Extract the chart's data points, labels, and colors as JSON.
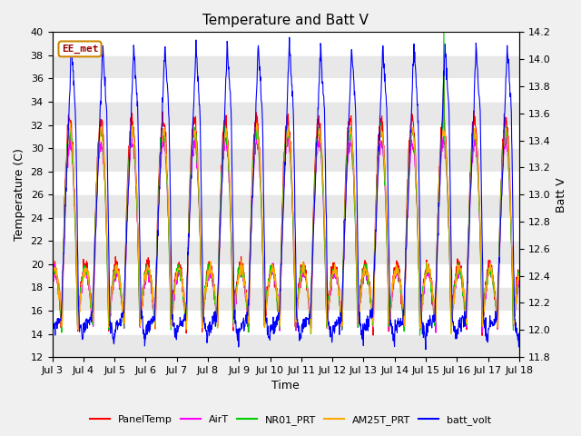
{
  "title": "Temperature and Batt V",
  "xlabel": "Time",
  "ylabel_left": "Temperature (C)",
  "ylabel_right": "Batt V",
  "annotation": "EE_met",
  "ylim_left": [
    12,
    40
  ],
  "ylim_right": [
    11.8,
    14.2
  ],
  "xtick_labels": [
    "Jul 3",
    "Jul 4",
    "Jul 5",
    "Jul 6",
    "Jul 7",
    "Jul 8",
    "Jul 9",
    "Jul 10",
    "Jul 11",
    "Jul 12",
    "Jul 13",
    "Jul 14",
    "Jul 15",
    "Jul 16",
    "Jul 17",
    "Jul 18"
  ],
  "legend_entries": [
    "PanelTemp",
    "AirT",
    "NR01_PRT",
    "AM25T_PRT",
    "batt_volt"
  ],
  "line_colors": [
    "#ff0000",
    "#ff00ff",
    "#00cc00",
    "#ffaa00",
    "#0000ff"
  ],
  "background_color": "#f0f0f0",
  "plot_bg_color": "#ffffff",
  "stripe_color": "#e8e8e8",
  "title_fontsize": 11,
  "axis_fontsize": 9,
  "tick_fontsize": 8
}
